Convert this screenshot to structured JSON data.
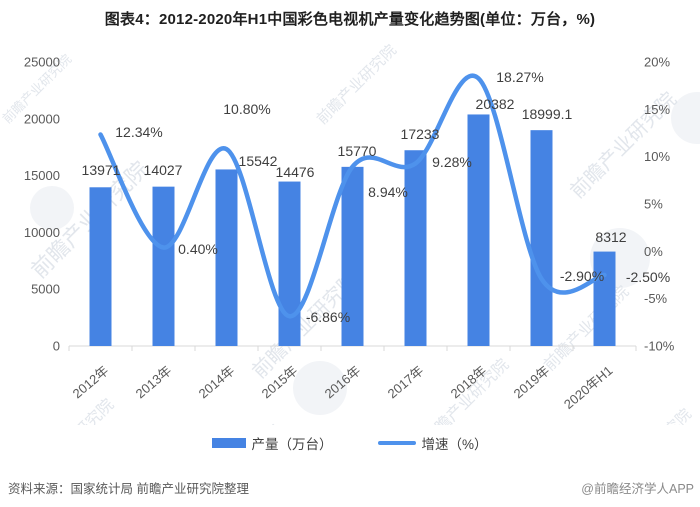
{
  "title": "图表4：2012-2020年H1中国彩色电视机产量变化趋势图(单位：万台，%)",
  "chart_data": {
    "type": "bar+line",
    "title": "图表4：2012-2020年H1中国彩色电视机产量变化趋势图(单位：万台，%)",
    "categories": [
      "2012年",
      "2013年",
      "2014年",
      "2015年",
      "2016年",
      "2017年",
      "2018年",
      "2019年",
      "2020年H1"
    ],
    "series": [
      {
        "name": "产量（万台）",
        "type": "bar",
        "axis": "left",
        "values": [
          13971,
          14027,
          15542,
          14476,
          15770,
          17233,
          20382,
          18999.1,
          8312
        ],
        "labels": [
          "13971",
          "14027",
          "15542",
          "14476",
          "15770",
          "17233",
          "20382",
          "18999.1",
          "8312"
        ]
      },
      {
        "name": "增速（%）",
        "type": "line",
        "axis": "right",
        "values": [
          12.34,
          0.4,
          10.8,
          -6.86,
          8.94,
          9.28,
          18.27,
          -2.9,
          -2.5
        ],
        "labels": [
          "12.34%",
          "0.40%",
          "10.80%",
          "-6.86%",
          "8.94%",
          "9.28%",
          "18.27%",
          "-2.90%",
          "-2.50%"
        ]
      }
    ],
    "left_axis": {
      "min": 0,
      "max": 25000,
      "ticks": [
        "0",
        "5000",
        "10000",
        "15000",
        "20000",
        "25000"
      ]
    },
    "right_axis": {
      "min": -10,
      "max": 20,
      "ticks": [
        "-10%",
        "-5%",
        "0%",
        "5%",
        "10%",
        "15%",
        "20%"
      ]
    },
    "grid": false,
    "legend_position": "bottom",
    "legend": [
      "产量（万台）",
      "增速（%）"
    ]
  },
  "legend": {
    "bar_label": "产量（万台）",
    "line_label": "增速（%）"
  },
  "footer": {
    "source": "资料来源：国家统计局 前瞻产业研究院整理",
    "credit": "@前瞻经济学人APP"
  },
  "watermark": {
    "text": "前瞻产业研究院"
  },
  "colors": {
    "bar": "#4583E3",
    "line": "#4E92EC",
    "axis_text": "#595959",
    "label_text": "#3f3f3f",
    "axis_line": "#d9d9d9",
    "title_text": "#1f1f1f",
    "watermark_text": "#dfe4ea",
    "watermark_shape": "#eceff3"
  }
}
